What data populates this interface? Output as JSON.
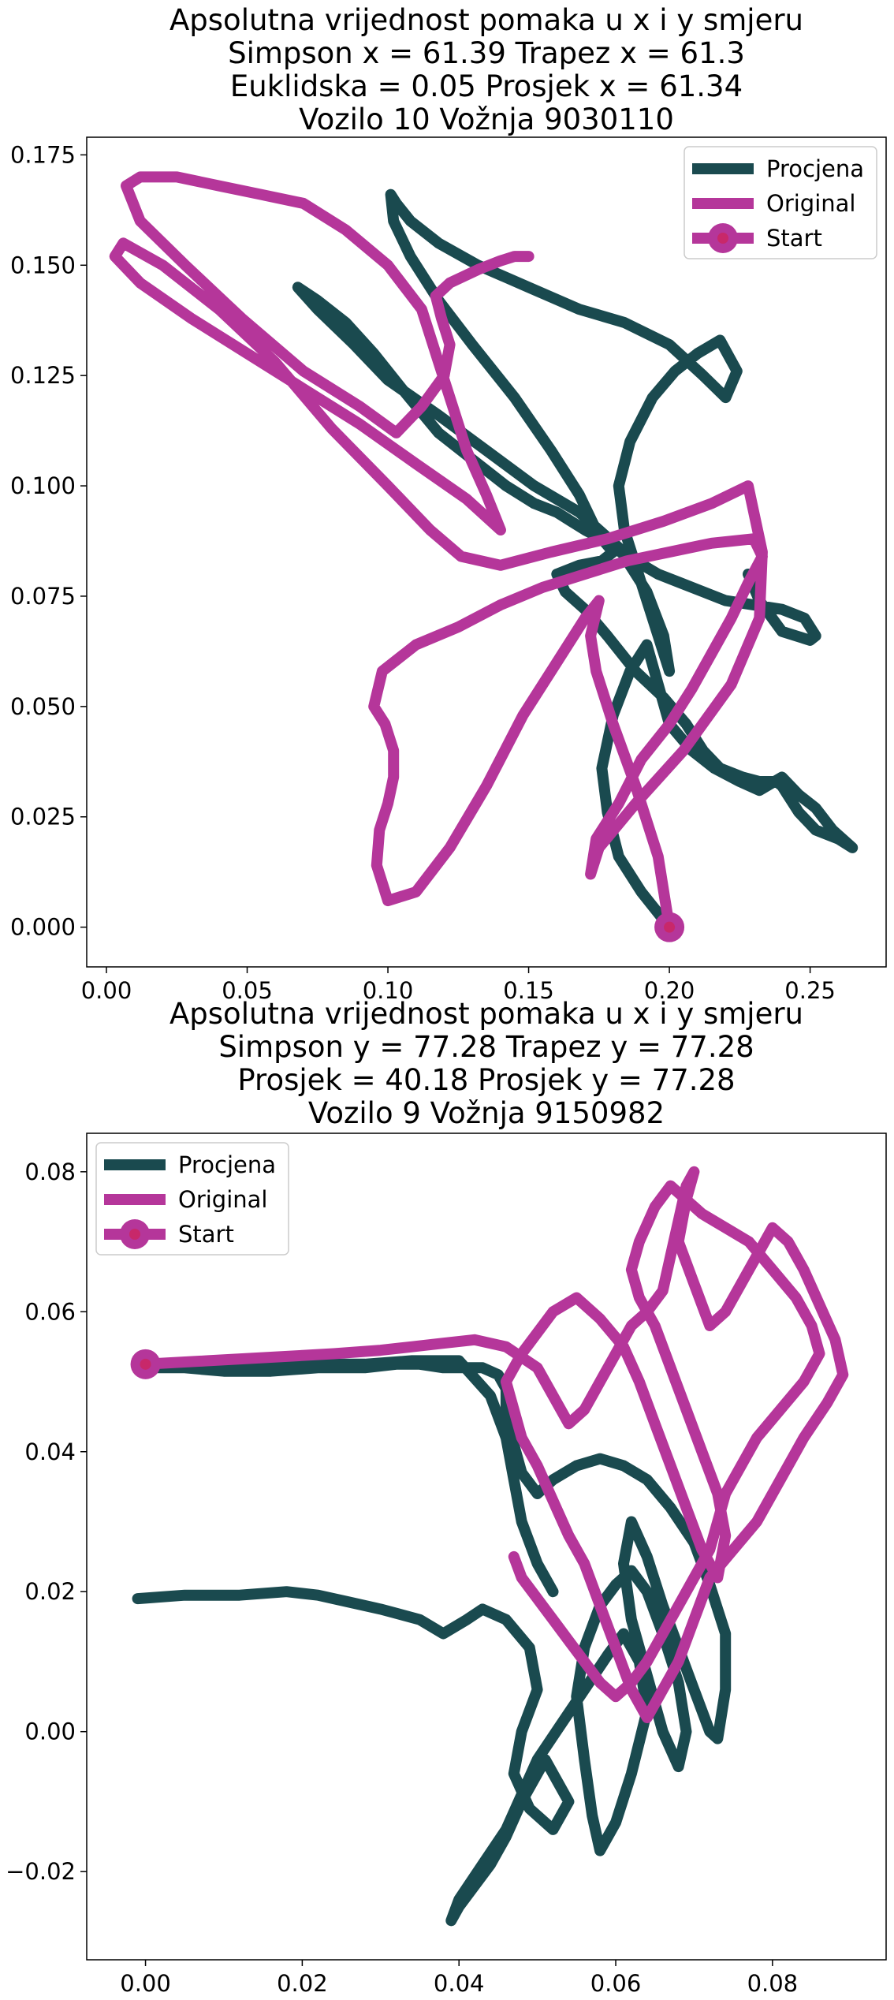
{
  "chart_data": [
    {
      "type": "line",
      "title_lines": [
        "Apsolutna vrijednost pomaka u x i y smjeru",
        "Simpson x = 61.39 Trapez x = 61.3",
        "Euklidska = 0.05 Prosjek x = 61.34",
        "Vozilo 10 Vožnja 9030110"
      ],
      "xlabel": "",
      "ylabel": "",
      "xlim": [
        -0.007,
        0.277
      ],
      "ylim": [
        -0.009,
        0.179
      ],
      "xticks": [
        0.0,
        0.05,
        0.1,
        0.15,
        0.2,
        0.25
      ],
      "xtick_labels": [
        "0.00",
        "0.05",
        "0.10",
        "0.15",
        "0.20",
        "0.25"
      ],
      "yticks": [
        0.0,
        0.025,
        0.05,
        0.075,
        0.1,
        0.125,
        0.15,
        0.175
      ],
      "ytick_labels": [
        "0.000",
        "0.025",
        "0.050",
        "0.075",
        "0.100",
        "0.125",
        "0.150",
        "0.175"
      ],
      "grid": false,
      "legend_position": "top-right",
      "legend": [
        "Procjena",
        "Original",
        "Start"
      ],
      "colors": {
        "procjena": "#1a4a4f",
        "original": "#b5369a",
        "start_outer": "#b5369a",
        "start_inner": "#c8286a"
      },
      "series": [
        {
          "name": "Procjena",
          "x": [
            0.2,
            0.19,
            0.182,
            0.178,
            0.176,
            0.18,
            0.186,
            0.192,
            0.2,
            0.208,
            0.216,
            0.225,
            0.232,
            0.24,
            0.246,
            0.252,
            0.258,
            0.265,
            0.26,
            0.252,
            0.246,
            0.242,
            0.24,
            0.238,
            0.232,
            0.226,
            0.218,
            0.212,
            0.206,
            0.198,
            0.188,
            0.178,
            0.17,
            0.163,
            0.16,
            0.168,
            0.176,
            0.18,
            0.176,
            0.17,
            0.165,
            0.16,
            0.152,
            0.142,
            0.13,
            0.118,
            0.105,
            0.095,
            0.085,
            0.075,
            0.068,
            0.075,
            0.088,
            0.1,
            0.118,
            0.135,
            0.152,
            0.168,
            0.182,
            0.192,
            0.198,
            0.2,
            0.196,
            0.19,
            0.184,
            0.182,
            0.186,
            0.194,
            0.202,
            0.21,
            0.218,
            0.224,
            0.22,
            0.212,
            0.2,
            0.184,
            0.168,
            0.15,
            0.132,
            0.118,
            0.108,
            0.103,
            0.101,
            0.102,
            0.108,
            0.118,
            0.13,
            0.145,
            0.158,
            0.168,
            0.174,
            0.18,
            0.188,
            0.196,
            0.204,
            0.212,
            0.22,
            0.23,
            0.24,
            0.248,
            0.252,
            0.25,
            0.24,
            0.232,
            0.228
          ],
          "y": [
            0.0,
            0.008,
            0.016,
            0.026,
            0.036,
            0.048,
            0.058,
            0.064,
            0.046,
            0.04,
            0.036,
            0.033,
            0.031,
            0.034,
            0.03,
            0.027,
            0.022,
            0.018,
            0.02,
            0.022,
            0.026,
            0.03,
            0.032,
            0.033,
            0.033,
            0.034,
            0.036,
            0.04,
            0.046,
            0.052,
            0.058,
            0.066,
            0.072,
            0.076,
            0.08,
            0.082,
            0.083,
            0.085,
            0.088,
            0.09,
            0.092,
            0.094,
            0.096,
            0.1,
            0.106,
            0.112,
            0.122,
            0.13,
            0.137,
            0.142,
            0.145,
            0.14,
            0.132,
            0.124,
            0.116,
            0.108,
            0.1,
            0.094,
            0.086,
            0.076,
            0.066,
            0.058,
            0.066,
            0.078,
            0.09,
            0.1,
            0.11,
            0.12,
            0.126,
            0.13,
            0.133,
            0.126,
            0.12,
            0.125,
            0.132,
            0.137,
            0.14,
            0.145,
            0.15,
            0.155,
            0.16,
            0.164,
            0.166,
            0.16,
            0.152,
            0.142,
            0.132,
            0.12,
            0.108,
            0.098,
            0.09,
            0.086,
            0.083,
            0.08,
            0.078,
            0.076,
            0.074,
            0.073,
            0.072,
            0.07,
            0.066,
            0.065,
            0.067,
            0.074,
            0.08
          ]
        },
        {
          "name": "Original",
          "x": [
            0.2,
            0.196,
            0.188,
            0.18,
            0.174,
            0.172,
            0.175,
            0.17,
            0.16,
            0.148,
            0.135,
            0.122,
            0.11,
            0.1,
            0.096,
            0.097,
            0.1,
            0.102,
            0.102,
            0.099,
            0.095,
            0.098,
            0.11,
            0.125,
            0.14,
            0.155,
            0.17,
            0.185,
            0.2,
            0.215,
            0.23,
            0.233,
            0.228,
            0.222,
            0.215,
            0.208,
            0.2,
            0.19,
            0.182,
            0.174,
            0.172,
            0.175,
            0.188,
            0.205,
            0.222,
            0.232,
            0.233,
            0.228,
            0.215,
            0.198,
            0.178,
            0.158,
            0.14,
            0.126,
            0.115,
            0.1,
            0.08,
            0.06,
            0.04,
            0.02,
            0.006,
            0.003,
            0.012,
            0.03,
            0.05,
            0.07,
            0.09,
            0.11,
            0.128,
            0.14,
            0.135,
            0.128,
            0.123,
            0.118,
            0.112,
            0.1,
            0.085,
            0.07,
            0.055,
            0.04,
            0.025,
            0.012,
            0.007,
            0.012,
            0.028,
            0.048,
            0.07,
            0.09,
            0.103,
            0.112,
            0.12,
            0.122,
            0.119,
            0.117,
            0.122,
            0.132,
            0.14,
            0.145,
            0.15
          ],
          "y": [
            0.0,
            0.016,
            0.032,
            0.046,
            0.058,
            0.066,
            0.074,
            0.07,
            0.06,
            0.048,
            0.032,
            0.018,
            0.008,
            0.006,
            0.014,
            0.022,
            0.028,
            0.034,
            0.04,
            0.046,
            0.05,
            0.058,
            0.064,
            0.068,
            0.073,
            0.077,
            0.08,
            0.083,
            0.085,
            0.087,
            0.088,
            0.084,
            0.078,
            0.07,
            0.062,
            0.054,
            0.046,
            0.038,
            0.028,
            0.02,
            0.012,
            0.018,
            0.028,
            0.04,
            0.055,
            0.07,
            0.085,
            0.1,
            0.096,
            0.092,
            0.088,
            0.085,
            0.082,
            0.084,
            0.09,
            0.1,
            0.113,
            0.128,
            0.14,
            0.15,
            0.155,
            0.152,
            0.146,
            0.138,
            0.13,
            0.122,
            0.114,
            0.105,
            0.097,
            0.09,
            0.098,
            0.108,
            0.118,
            0.128,
            0.14,
            0.15,
            0.158,
            0.164,
            0.166,
            0.168,
            0.17,
            0.17,
            0.168,
            0.16,
            0.15,
            0.138,
            0.126,
            0.118,
            0.112,
            0.118,
            0.125,
            0.132,
            0.138,
            0.143,
            0.146,
            0.149,
            0.151,
            0.152,
            0.152
          ]
        }
      ],
      "start_point": {
        "name": "Start",
        "x": 0.2,
        "y": 0.0
      }
    },
    {
      "type": "line",
      "title_lines": [
        "Apsolutna vrijednost pomaka u x i y smjeru",
        "Simpson y = 77.28 Trapez y = 77.28",
        "Prosjek = 40.18 Prosjek y = 77.28",
        "Vozilo 9 Vožnja 9150982"
      ],
      "xlabel": "",
      "ylabel": "",
      "xlim": [
        -0.0075,
        0.0945
      ],
      "ylim": [
        -0.0326,
        0.0855
      ],
      "xticks": [
        0.0,
        0.02,
        0.04,
        0.06,
        0.08
      ],
      "xtick_labels": [
        "0.00",
        "0.02",
        "0.04",
        "0.06",
        "0.08"
      ],
      "yticks": [
        -0.02,
        0.0,
        0.02,
        0.04,
        0.06,
        0.08
      ],
      "ytick_labels": [
        "−0.02",
        "0.00",
        "0.02",
        "0.04",
        "0.06",
        "0.08"
      ],
      "grid": false,
      "legend_position": "top-left",
      "legend": [
        "Procjena",
        "Original",
        "Start"
      ],
      "colors": {
        "procjena": "#1a4a4f",
        "original": "#b5369a",
        "start_outer": "#b5369a",
        "start_inner": "#c8286a"
      },
      "series": [
        {
          "name": "Procjena",
          "x": [
            -0.001,
            0.005,
            0.012,
            0.018,
            0.022,
            0.026,
            0.03,
            0.035,
            0.038,
            0.041,
            0.043,
            0.046,
            0.049,
            0.05,
            0.048,
            0.047,
            0.049,
            0.052,
            0.054,
            0.051,
            0.048,
            0.046,
            0.044,
            0.042,
            0.04,
            0.039,
            0.04,
            0.043,
            0.046,
            0.048,
            0.05,
            0.053,
            0.056,
            0.059,
            0.061,
            0.063,
            0.064,
            0.062,
            0.06,
            0.058,
            0.057,
            0.056,
            0.055,
            0.056,
            0.058,
            0.06,
            0.062,
            0.064,
            0.066,
            0.068,
            0.069,
            0.068,
            0.066,
            0.064,
            0.062,
            0.061,
            0.062,
            0.064,
            0.066,
            0.068,
            0.07,
            0.072,
            0.073,
            0.074,
            0.074,
            0.072,
            0.07,
            0.067,
            0.064,
            0.061,
            0.058,
            0.055,
            0.052,
            0.05,
            0.048,
            0.047,
            0.046,
            0.046,
            0.045,
            0.043,
            0.041,
            0.038,
            0.035,
            0.032,
            0.028,
            0.022,
            0.016,
            0.01,
            0.005,
            0.001,
            0.005,
            0.012,
            0.02,
            0.028,
            0.034,
            0.04,
            0.044,
            0.046,
            0.047,
            0.048,
            0.05,
            0.052
          ],
          "y": [
            0.019,
            0.0195,
            0.0195,
            0.02,
            0.0195,
            0.0185,
            0.0175,
            0.016,
            0.014,
            0.016,
            0.0175,
            0.016,
            0.012,
            0.006,
            0.0,
            -0.006,
            -0.011,
            -0.014,
            -0.01,
            -0.004,
            -0.01,
            -0.015,
            -0.019,
            -0.022,
            -0.025,
            -0.027,
            -0.024,
            -0.019,
            -0.014,
            -0.009,
            -0.004,
            0.001,
            0.006,
            0.011,
            0.014,
            0.01,
            0.003,
            -0.006,
            -0.013,
            -0.017,
            -0.012,
            -0.004,
            0.005,
            0.012,
            0.018,
            0.021,
            0.023,
            0.02,
            0.014,
            0.007,
            0.0,
            -0.005,
            0.0,
            0.008,
            0.016,
            0.024,
            0.03,
            0.025,
            0.018,
            0.012,
            0.006,
            0.0,
            -0.001,
            0.006,
            0.014,
            0.021,
            0.027,
            0.032,
            0.036,
            0.038,
            0.039,
            0.038,
            0.036,
            0.034,
            0.037,
            0.041,
            0.045,
            0.049,
            0.051,
            0.052,
            0.052,
            0.052,
            0.0525,
            0.0525,
            0.052,
            0.052,
            0.0515,
            0.0515,
            0.052,
            0.052,
            0.052,
            0.0525,
            0.0525,
            0.0525,
            0.053,
            0.053,
            0.048,
            0.042,
            0.036,
            0.03,
            0.024,
            0.02
          ]
        },
        {
          "name": "Original",
          "x": [
            0.0,
            0.008,
            0.016,
            0.024,
            0.03,
            0.034,
            0.038,
            0.042,
            0.046,
            0.05,
            0.052,
            0.054,
            0.056,
            0.058,
            0.06,
            0.062,
            0.064,
            0.066,
            0.067,
            0.068,
            0.069,
            0.07,
            0.069,
            0.068,
            0.07,
            0.072,
            0.074,
            0.076,
            0.078,
            0.08,
            0.082,
            0.084,
            0.086,
            0.088,
            0.089,
            0.087,
            0.084,
            0.081,
            0.078,
            0.075,
            0.072,
            0.07,
            0.068,
            0.066,
            0.064,
            0.062,
            0.06,
            0.058,
            0.056,
            0.054,
            0.052,
            0.05,
            0.048,
            0.047,
            0.046,
            0.048,
            0.05,
            0.052,
            0.055,
            0.058,
            0.061,
            0.063,
            0.065,
            0.067,
            0.069,
            0.071,
            0.073,
            0.074,
            0.073,
            0.071,
            0.069,
            0.067,
            0.065,
            0.063,
            0.062,
            0.063,
            0.065,
            0.067,
            0.069,
            0.071,
            0.074,
            0.077,
            0.08,
            0.083,
            0.085,
            0.086,
            0.084,
            0.081,
            0.078,
            0.076,
            0.074,
            0.073,
            0.072,
            0.07,
            0.068,
            0.066,
            0.064,
            0.062,
            0.06,
            0.058,
            0.056,
            0.054,
            0.052,
            0.05,
            0.048,
            0.047
          ],
          "y": [
            0.0525,
            0.053,
            0.0535,
            0.054,
            0.0545,
            0.055,
            0.0555,
            0.056,
            0.055,
            0.052,
            0.048,
            0.044,
            0.046,
            0.05,
            0.054,
            0.058,
            0.06,
            0.063,
            0.068,
            0.073,
            0.078,
            0.08,
            0.076,
            0.07,
            0.064,
            0.058,
            0.06,
            0.064,
            0.068,
            0.072,
            0.07,
            0.066,
            0.061,
            0.056,
            0.051,
            0.047,
            0.042,
            0.036,
            0.03,
            0.026,
            0.022,
            0.016,
            0.01,
            0.006,
            0.002,
            0.006,
            0.012,
            0.018,
            0.024,
            0.028,
            0.033,
            0.038,
            0.042,
            0.046,
            0.05,
            0.054,
            0.057,
            0.06,
            0.062,
            0.059,
            0.055,
            0.05,
            0.044,
            0.038,
            0.032,
            0.026,
            0.022,
            0.028,
            0.034,
            0.04,
            0.046,
            0.052,
            0.058,
            0.062,
            0.066,
            0.07,
            0.075,
            0.078,
            0.076,
            0.074,
            0.072,
            0.07,
            0.066,
            0.062,
            0.058,
            0.054,
            0.05,
            0.046,
            0.042,
            0.038,
            0.034,
            0.03,
            0.026,
            0.022,
            0.018,
            0.014,
            0.01,
            0.007,
            0.005,
            0.007,
            0.01,
            0.013,
            0.016,
            0.019,
            0.022,
            0.025
          ]
        }
      ],
      "start_point": {
        "name": "Start",
        "x": 0.0,
        "y": 0.0525
      }
    }
  ]
}
